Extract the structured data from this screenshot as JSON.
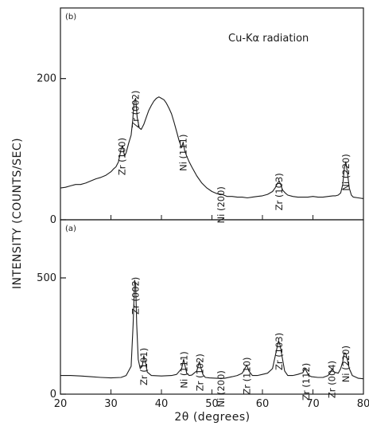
{
  "chart_data": {
    "type": "line",
    "ylabel": "INTENSITY (COUNTS/SEC)",
    "xlabel": "2θ (degrees)",
    "xlim": [
      20,
      80
    ],
    "x_ticks": [
      "20",
      "30",
      "40",
      "50",
      "60",
      "70",
      "80"
    ],
    "annotation": "Cu-Kα radiation",
    "panels": [
      {
        "tag": "(b)",
        "ylim": [
          0,
          300
        ],
        "y_ticks": [
          {
            "value": 200,
            "label": "200"
          },
          {
            "value": 0,
            "label": "0"
          }
        ],
        "series": [
          {
            "x": [
              20,
              21,
              22,
              23,
              24,
              25,
              26,
              27,
              28,
              29,
              30,
              30.5,
              31,
              31.5,
              32,
              32.3,
              32.7,
              33,
              33.5,
              34,
              34.3,
              34.6,
              34.9,
              35.2,
              35.6,
              36,
              36.5,
              37,
              37.5,
              38,
              38.5,
              39,
              39.5,
              40,
              40.5,
              41,
              41.5,
              42,
              42.5,
              43,
              43.5,
              44,
              44.3,
              44.6,
              45,
              45.5,
              46,
              47,
              48,
              49,
              50,
              51,
              52,
              53,
              54,
              55,
              56,
              57,
              58,
              59,
              60,
              61,
              62,
              62.5,
              63,
              63.3,
              63.6,
              64,
              64.5,
              65,
              66,
              67,
              68,
              69,
              70,
              71,
              72,
              73,
              74,
              74.5,
              75,
              75.5,
              75.9,
              76.2,
              76.5,
              76.8,
              77.2,
              77.6,
              78,
              79,
              80
            ],
            "y": [
              45,
              46,
              48,
              50,
              50,
              52,
              55,
              58,
              60,
              63,
              68,
              72,
              75,
              82,
              100,
              105,
              90,
              95,
              108,
              120,
              140,
              168,
              172,
              145,
              130,
              128,
              135,
              145,
              155,
              162,
              168,
              172,
              174,
              172,
              170,
              165,
              158,
              150,
              138,
              125,
              112,
              102,
              110,
              98,
              90,
              82,
              75,
              62,
              52,
              45,
              40,
              37,
              36,
              33,
              33,
              32,
              32,
              31,
              32,
              33,
              34,
              36,
              40,
              45,
              52,
              55,
              50,
              42,
              38,
              35,
              33,
              32,
              32,
              32,
              33,
              32,
              32,
              33,
              34,
              34,
              35,
              38,
              50,
              72,
              82,
              68,
              45,
              35,
              32,
              31,
              30
            ]
          }
        ],
        "peaks": [
          {
            "label": "Zr (100)",
            "x": 32.2
          },
          {
            "label": "Zr (002)",
            "x": 34.9
          },
          {
            "label": "Ni (111)",
            "x": 44.3
          },
          {
            "label": "Ni (200)",
            "x": 51.8
          },
          {
            "label": "Zr (103)",
            "x": 63.3
          },
          {
            "label": "Ni (220)",
            "x": 76.5
          }
        ]
      },
      {
        "tag": "(a)",
        "ylim": [
          0,
          750
        ],
        "y_ticks": [
          {
            "value": 500,
            "label": "500"
          },
          {
            "value": 0,
            "label": "0"
          }
        ],
        "series": [
          {
            "x": [
              20,
              22,
              24,
              26,
              28,
              30,
              32,
              33,
              34,
              34.4,
              34.7,
              34.9,
              35.1,
              35.4,
              35.8,
              36.2,
              36.5,
              36.8,
              37.2,
              38,
              40,
              42,
              43,
              44,
              44.4,
              44.7,
              45,
              45.5,
              46,
              47,
              47.5,
              47.8,
              48.2,
              48.7,
              49.5,
              51,
              52.5,
              54,
              55,
              56,
              56.5,
              56.9,
              57.3,
              58,
              59,
              60,
              61,
              62,
              62.7,
              63.2,
              63.5,
              63.9,
              64.4,
              65,
              66,
              67,
              68,
              68.4,
              68.7,
              69.1,
              69.7,
              71,
              72,
              73,
              73.5,
              73.8,
              74.2,
              75,
              75.5,
              75.9,
              76.2,
              76.5,
              76.8,
              77.2,
              77.8,
              79,
              80
            ],
            "y": [
              80,
              80,
              78,
              75,
              72,
              70,
              72,
              80,
              120,
              300,
              490,
              470,
              300,
              150,
              110,
              120,
              165,
              140,
              95,
              80,
              78,
              80,
              85,
              110,
              150,
              120,
              90,
              80,
              82,
              100,
              140,
              115,
              85,
              72,
              70,
              68,
              68,
              75,
              80,
              90,
              110,
              125,
              100,
              80,
              80,
              85,
              90,
              110,
              180,
              230,
              210,
              160,
              100,
              80,
              80,
              85,
              92,
              110,
              100,
              82,
              75,
              72,
              72,
              80,
              95,
              110,
              95,
              90,
              110,
              140,
              178,
              175,
              150,
              110,
              80,
              68,
              66
            ]
          }
        ],
        "peaks": [
          {
            "label": "Zr (002)",
            "x": 34.9
          },
          {
            "label": "Zr (101)",
            "x": 36.5
          },
          {
            "label": "Ni (111)",
            "x": 44.5
          },
          {
            "label": "Zr (102)",
            "x": 47.6
          },
          {
            "label": "Ni (200)",
            "x": 51.8
          },
          {
            "label": "Zr (110)",
            "x": 56.9
          },
          {
            "label": "Zr (103)",
            "x": 63.3
          },
          {
            "label": "Zr (112)",
            "x": 68.7
          },
          {
            "label": "Zr (004)",
            "x": 73.8
          },
          {
            "label": "Ni (220)",
            "x": 76.5
          }
        ]
      }
    ]
  }
}
